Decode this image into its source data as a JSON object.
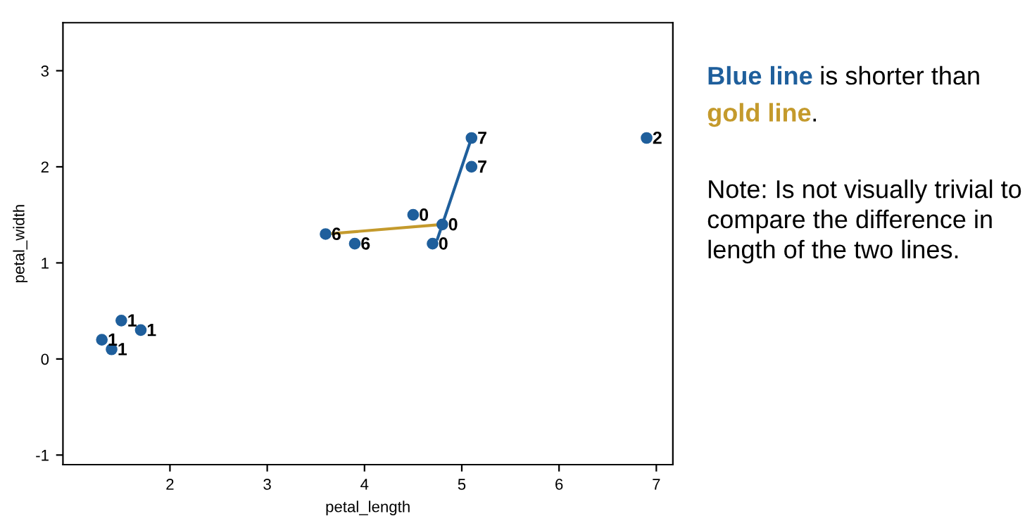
{
  "chart_data": {
    "type": "scatter",
    "xlabel": "petal_length",
    "ylabel": "petal_width",
    "xlim": [
      0.9,
      7.17
    ],
    "ylim": [
      -1.1,
      3.5
    ],
    "xticks": [
      2,
      3,
      4,
      5,
      6,
      7
    ],
    "yticks": [
      -1,
      0,
      1,
      2,
      3
    ],
    "grid": false,
    "series": [
      {
        "marker": "circle",
        "color": "#1f5f9c",
        "x": [
          1.3,
          1.4,
          1.5,
          1.7,
          3.6,
          3.9,
          4.5,
          4.7,
          4.8,
          5.1,
          5.1,
          6.9
        ],
        "values": [
          0.2,
          0.1,
          0.4,
          0.3,
          1.3,
          1.2,
          1.5,
          1.2,
          1.4,
          2.3,
          2.0,
          2.3
        ]
      },
      {
        "type": "line",
        "marker": "none",
        "name": "Blue line",
        "color": "#1f5f9c",
        "x": [
          4.75,
          5.1
        ],
        "values": [
          1.25,
          2.3
        ]
      },
      {
        "type": "line",
        "marker": "none",
        "name": "gold line",
        "color": "#c49a2c",
        "x": [
          3.6,
          4.8
        ],
        "values": [
          1.3,
          1.4
        ]
      }
    ],
    "annotations": [
      " is shorter than",
      ".",
      "Note: Is not visually trivial to compare the difference in length of the two lines.",
      {
        "text": "1",
        "x": 1.3,
        "y": 0.2
      },
      {
        "text": "1",
        "x": 1.4,
        "y": 0.1
      },
      {
        "text": "1",
        "x": 1.5,
        "y": 0.4
      },
      {
        "text": "1",
        "x": 1.7,
        "y": 0.3
      },
      {
        "text": "6",
        "x": 3.6,
        "y": 1.3
      },
      {
        "text": "6",
        "x": 3.9,
        "y": 1.2
      },
      {
        "text": "0",
        "x": 4.5,
        "y": 1.5
      },
      {
        "text": "0",
        "x": 4.7,
        "y": 1.2
      },
      {
        "text": "0",
        "x": 4.8,
        "y": 1.4
      },
      {
        "text": "7",
        "x": 5.1,
        "y": 2.3
      },
      {
        "text": "7",
        "x": 5.1,
        "y": 2.0
      },
      {
        "text": "2",
        "x": 6.9,
        "y": 2.3
      }
    ]
  }
}
